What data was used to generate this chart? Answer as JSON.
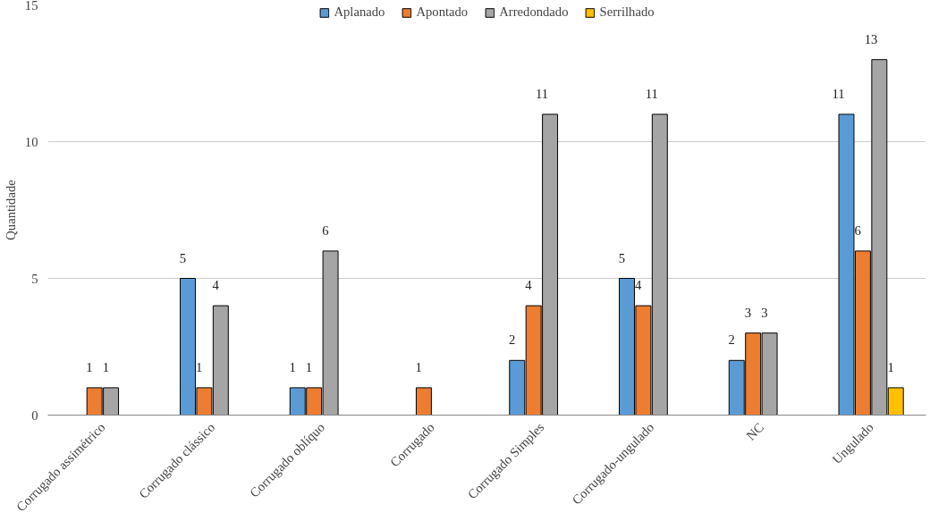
{
  "chart_data": {
    "type": "bar",
    "ylabel": "Quantidade",
    "categories": [
      "Corrugado assimétrico",
      "Corrugado clássico",
      "Corrugado oblíquo",
      "Corrugado",
      "Corrugado Simples",
      "Corrugado-ungulado",
      "NC",
      "Ungulado"
    ],
    "series": [
      {
        "name": "Aplanado",
        "color": "#5b9bd5",
        "values": [
          null,
          5,
          1,
          null,
          2,
          5,
          2,
          11
        ]
      },
      {
        "name": "Apontado",
        "color": "#ed7d31",
        "values": [
          1,
          1,
          1,
          1,
          4,
          4,
          3,
          6
        ]
      },
      {
        "name": "Arredondado",
        "color": "#a5a5a5",
        "values": [
          1,
          4,
          6,
          null,
          11,
          11,
          3,
          13
        ]
      },
      {
        "name": "Serrilhado",
        "color": "#ffc000",
        "values": [
          null,
          null,
          null,
          null,
          null,
          null,
          null,
          1
        ]
      }
    ],
    "ylim": [
      0,
      15
    ],
    "yticks": [
      0,
      5,
      10,
      15
    ],
    "grid": "y",
    "legend": "top",
    "data_labels": true
  }
}
